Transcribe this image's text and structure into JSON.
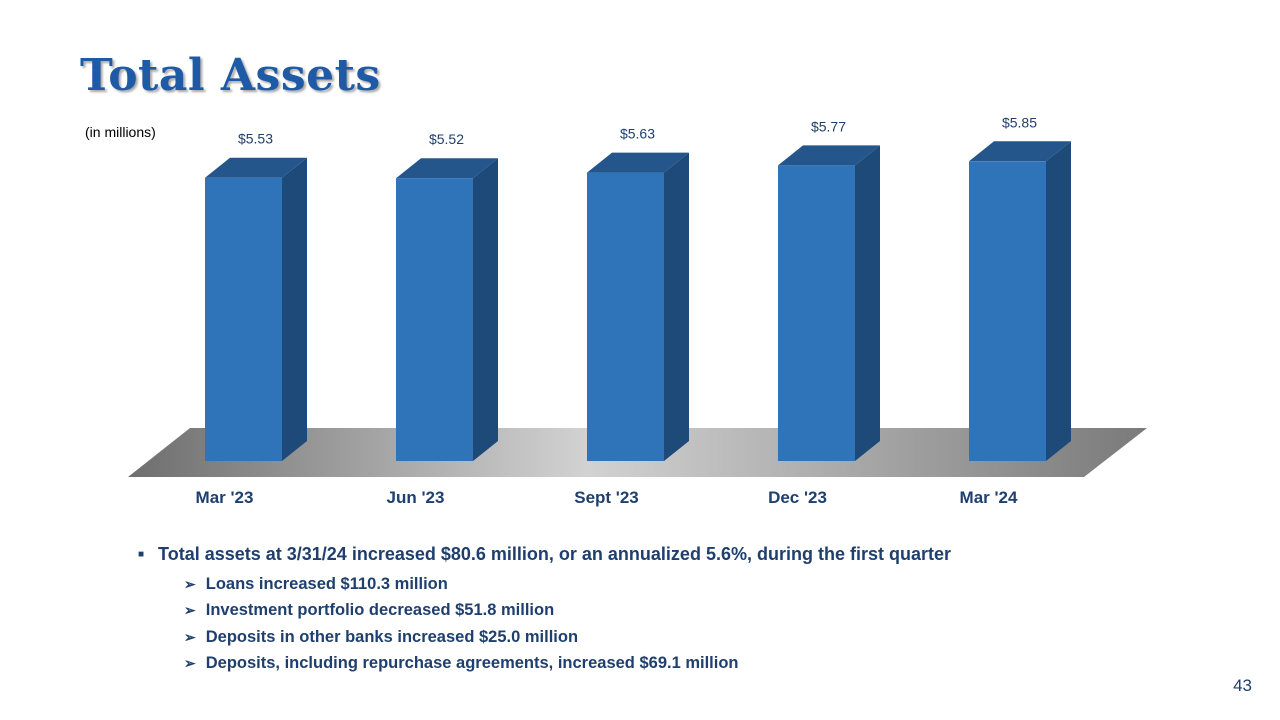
{
  "slide": {
    "title": "Total Assets",
    "unit_note": "(in millions)",
    "page_number": "43"
  },
  "chart_data": {
    "type": "bar",
    "title": "Total Assets",
    "ylabel": "(in millions)",
    "categories": [
      "Mar '23",
      "Jun '23",
      "Sept '23",
      "Dec '23",
      "Mar '24"
    ],
    "values": [
      5.53,
      5.52,
      5.63,
      5.77,
      5.85
    ],
    "data_labels": [
      "$5.53",
      "$5.52",
      "$5.63",
      "$5.77",
      "$5.85"
    ],
    "ylim": [
      0,
      6.5
    ],
    "grid": false,
    "legend": "none",
    "colors": {
      "bar_front": "#2f74b8",
      "bar_side": "#1d4a78",
      "bar_top": "#24568c",
      "label": "#1f3f6e"
    }
  },
  "bullets": {
    "main": "Total assets at 3/31/24 increased $80.6 million,  or an annualized 5.6%, during the first quarter",
    "sub": [
      "Loans increased $110.3 million",
      "Investment portfolio decreased $51.8 million",
      "Deposits in other banks increased $25.0 million",
      "Deposits, including repurchase agreements, increased $69.1 million"
    ]
  }
}
